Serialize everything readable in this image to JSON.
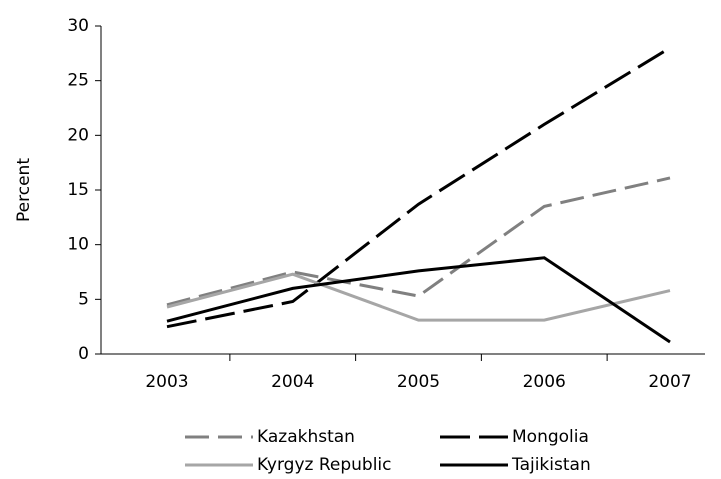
{
  "chart_data": {
    "type": "line",
    "y_label": "Percent",
    "categories": [
      "2003",
      "2004",
      "2005",
      "2006",
      "2007"
    ],
    "series": [
      {
        "name": "Kazakhstan",
        "color": "#808080",
        "style": "dashed",
        "values": [
          4.5,
          7.5,
          5.3,
          13.5,
          16.1
        ]
      },
      {
        "name": "Mongolia",
        "color": "#000000",
        "style": "dashed",
        "values": [
          2.5,
          4.8,
          13.7,
          21,
          28
        ]
      },
      {
        "name": "Kyrgyz Republic",
        "color": "#a6a6a6",
        "style": "solid",
        "values": [
          4.3,
          7.3,
          3.1,
          3.1,
          5.8
        ]
      },
      {
        "name": "Tajikistan",
        "color": "#000000",
        "style": "solid",
        "values": [
          3.0,
          6.0,
          7.6,
          8.8,
          1.1
        ]
      }
    ],
    "ylim": [
      0,
      30
    ],
    "yticks": [
      0,
      5,
      10,
      15,
      20,
      25,
      30
    ],
    "grid": false,
    "legend": "bottom"
  }
}
